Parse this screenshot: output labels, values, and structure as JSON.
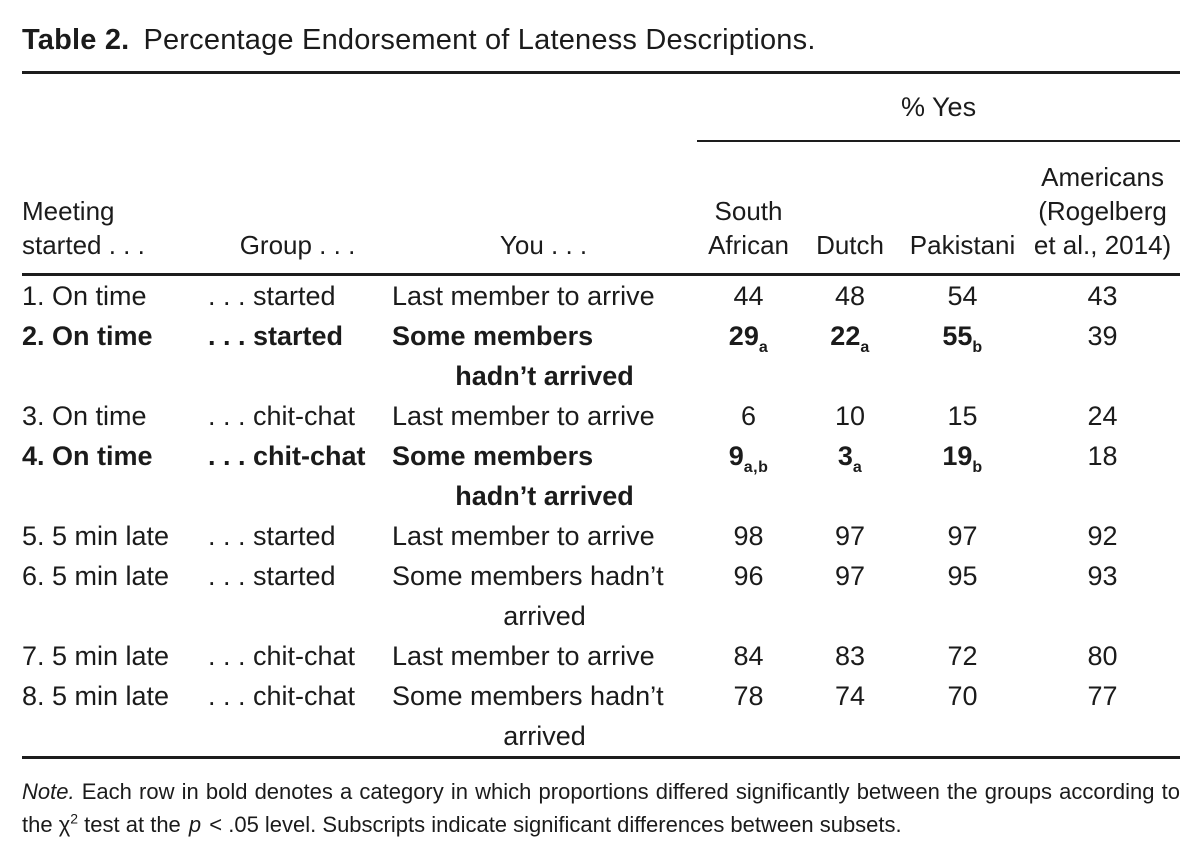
{
  "page": {
    "title_label": "Table 2.",
    "title_text": "Percentage Endorsement of Lateness Descriptions."
  },
  "header": {
    "span_label": "% Yes",
    "meeting_line1": "Meeting",
    "meeting_line2": "started . . .",
    "group": "Group . . .",
    "you": "You . . .",
    "south_african_line1": "South",
    "south_african_line2": "African",
    "dutch": "Dutch",
    "pakistani": "Pakistani",
    "americans_line1": "Americans",
    "americans_line2": "(Rogelberg",
    "americans_line3": "et al., 2014)"
  },
  "rows": [
    {
      "meeting": "1. On time",
      "group": ". . . started",
      "you1": "Last member to arrive",
      "values": [
        {
          "v": "44"
        },
        {
          "v": "48"
        },
        {
          "v": "54"
        },
        {
          "v": "43"
        }
      ]
    },
    {
      "meeting": "2. On time",
      "group": ". . . started",
      "you1": "Some members",
      "you2": "hadn’t arrived",
      "values": [
        {
          "v": "29",
          "sub": "a"
        },
        {
          "v": "22",
          "sub": "a"
        },
        {
          "v": "55",
          "sub": "b"
        },
        {
          "v": "39"
        }
      ]
    },
    {
      "meeting": "3. On time",
      "group": ". . . chit-chat",
      "you1": "Last member to arrive",
      "values": [
        {
          "v": "6"
        },
        {
          "v": "10"
        },
        {
          "v": "15"
        },
        {
          "v": "24"
        }
      ]
    },
    {
      "meeting": "4. On time",
      "group": ". . . chit-chat",
      "you1": "Some members",
      "you2": "hadn’t arrived",
      "values": [
        {
          "v": "9",
          "sub": "a,b"
        },
        {
          "v": "3",
          "sub": "a"
        },
        {
          "v": "19",
          "sub": "b"
        },
        {
          "v": "18"
        }
      ]
    },
    {
      "meeting": "5. 5 min late",
      "group": ". . . started",
      "you1": "Last member to arrive",
      "values": [
        {
          "v": "98"
        },
        {
          "v": "97"
        },
        {
          "v": "97"
        },
        {
          "v": "92"
        }
      ]
    },
    {
      "meeting": "6. 5 min late",
      "group": ". . . started",
      "you1": "Some members hadn’t",
      "you2": "arrived",
      "values": [
        {
          "v": "96"
        },
        {
          "v": "97"
        },
        {
          "v": "95"
        },
        {
          "v": "93"
        }
      ]
    },
    {
      "meeting": "7. 5 min late",
      "group": ". . . chit-chat",
      "you1": "Last member to arrive",
      "values": [
        {
          "v": "84"
        },
        {
          "v": "83"
        },
        {
          "v": "72"
        },
        {
          "v": "80"
        }
      ]
    },
    {
      "meeting": "8. 5 min late",
      "group": ". . . chit-chat",
      "you1": "Some members hadn’t",
      "you2": "arrived",
      "values": [
        {
          "v": "78"
        },
        {
          "v": "74"
        },
        {
          "v": "70"
        },
        {
          "v": "77"
        }
      ]
    }
  ],
  "note": {
    "label": "Note.",
    "text_part1": " Each row in bold denotes a category in which proportions differed significantly between the groups according to the ",
    "chi": "χ",
    "chi_exp": "2",
    "text_part2": " test at the ",
    "p_var": "p",
    "text_part3": " < .05 level. Subscripts indicate significant differences between subsets."
  },
  "colors": {
    "background": "#ffffff",
    "text": "#1b1b1b",
    "rule": "#1d1d1d"
  }
}
